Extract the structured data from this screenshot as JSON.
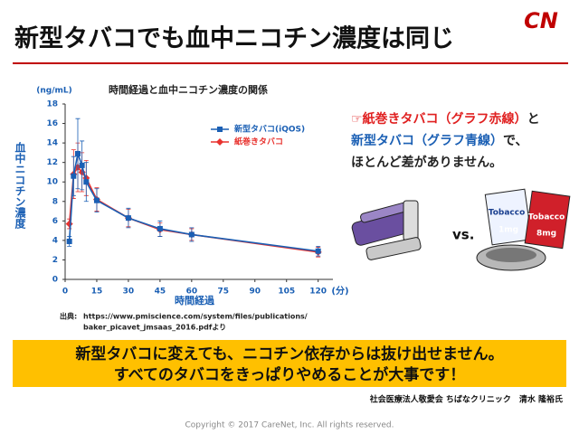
{
  "header": {
    "title": "新型タバコでも血中ニコチン濃度は同じ",
    "logo": "CN"
  },
  "chart_data": {
    "type": "line",
    "title": "時間経過と血中ニコチン濃度の関係",
    "y_unit": "(ng/mL)",
    "ylabel": "血中ニコチン濃度",
    "xlabel": "時間経過",
    "x_unit": "(分)",
    "x": [
      2,
      4,
      6,
      8,
      10,
      15,
      30,
      45,
      60,
      120
    ],
    "series": [
      {
        "name": "新型タバコ(iQOS)",
        "color": "#1a5fb4",
        "marker": "square",
        "values": [
          3.9,
          10.6,
          12.9,
          11.7,
          10.0,
          8.1,
          6.3,
          5.2,
          4.6,
          2.9
        ],
        "errors": [
          0.5,
          2.0,
          3.6,
          2.5,
          2.0,
          1.2,
          1.0,
          0.8,
          0.7,
          0.5
        ]
      },
      {
        "name": "紙巻きタバコ",
        "color": "#e8322e",
        "marker": "diamond",
        "values": [
          5.7,
          10.8,
          11.5,
          11.0,
          10.4,
          8.2,
          6.3,
          5.1,
          4.6,
          2.8
        ],
        "errors": [
          0.5,
          2.5,
          2.5,
          2.0,
          1.8,
          1.2,
          0.9,
          0.7,
          0.6,
          0.5
        ]
      }
    ],
    "xlim": [
      0,
      127
    ],
    "ylim": [
      0,
      18
    ],
    "xticks": [
      0,
      15,
      30,
      45,
      60,
      75,
      90,
      105,
      120
    ],
    "yticks": [
      0,
      2,
      4,
      6,
      8,
      10,
      12,
      14,
      16,
      18
    ],
    "legend": "upper right"
  },
  "source": {
    "label": "出典:",
    "lines": [
      "https://www.pmiscience.com/system/files/publications/",
      "baker_picavet_jmsaas_2016.pdfより"
    ]
  },
  "note": {
    "lines": [
      [
        {
          "text": "☞紙巻きタバコ（グラフ赤線）",
          "color": "#e02020"
        },
        {
          "text": "と",
          "color": "#222222"
        }
      ],
      [
        {
          "text": "新型タバコ（グラフ青線）",
          "color": "#1a5fb4"
        },
        {
          "text": "で、",
          "color": "#222222"
        }
      ],
      [
        {
          "text": "ほとんど差がありません。",
          "color": "#222222"
        }
      ]
    ]
  },
  "illustration": {
    "vs": "vs.",
    "pack_labels": [
      "Tobacco",
      "1mg",
      "Tobacco",
      "8mg"
    ]
  },
  "message": {
    "lines": [
      "新型タバコに変えても、ニコチン依存からは抜け出せません。",
      "すべてのタバコをきっぱりやめることが大事です！"
    ]
  },
  "credit": "社会医療法人敬愛会 ちばなクリニック　清水 隆裕氏",
  "copyright": "Copyright © 2017 CareNet, Inc. All rights reserved."
}
